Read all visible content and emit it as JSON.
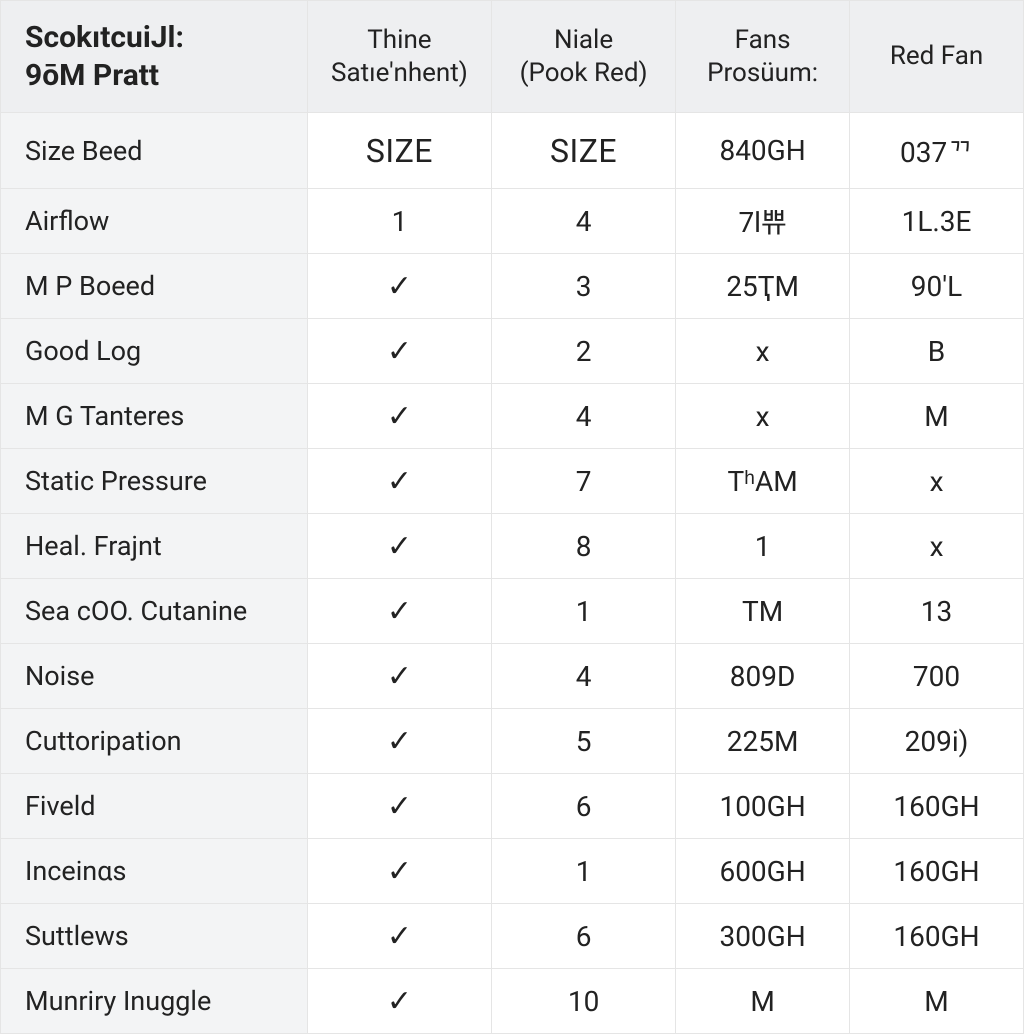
{
  "table": {
    "type": "table",
    "background_color": "#ffffff",
    "header_bg": "#eeeff1",
    "label_col_bg": "#f3f4f5",
    "border_color": "#e5e5e5",
    "text_color": "#222222",
    "header_fontsize": 26,
    "header_first_fontsize": 30,
    "body_fontsize": 28,
    "checkmark_glyph": "✓",
    "col_widths_pct": [
      30,
      18,
      18,
      17,
      17
    ],
    "columns": [
      "ScokıtcuiJl:\n9ōM Pratt",
      "Thine\nSatıe'nhent)",
      "Niale\n(Pook Red)",
      "Fans\nProsüum:",
      "Red Fan"
    ],
    "rows": [
      [
        "Size Beed",
        "SIZE",
        "SIZE",
        "840GH",
        "037ᄁ"
      ],
      [
        "Airflow",
        "1",
        "4",
        "7l쀼",
        "1L.3E"
      ],
      [
        "M P Boeed",
        "✓",
        "3",
        "25ҬM",
        "90'L"
      ],
      [
        "Good Log",
        "✓",
        "2",
        "x",
        "B"
      ],
      [
        "M G Tanteres",
        "✓",
        "4",
        "x",
        "M"
      ],
      [
        "Static Pressure",
        "✓",
        "7",
        "TʰAM",
        "x"
      ],
      [
        "Heal. Frajnt",
        "✓",
        "8",
        "1",
        "x"
      ],
      [
        "Sea cOO. Cutanine",
        "✓",
        "1",
        "TM",
        "13"
      ],
      [
        "Noise",
        "✓",
        "4",
        "809D",
        "700"
      ],
      [
        "Cuttoripation",
        "✓",
        "5",
        "225M",
        "209i)"
      ],
      [
        "Fiveld",
        "✓",
        "6",
        "100GH",
        "160GH"
      ],
      [
        "Inceinαs",
        "✓",
        "1",
        "600GH",
        "160GH"
      ],
      [
        "Suttlews",
        "✓",
        "6",
        "300GH",
        "160GH"
      ],
      [
        "Munriry Inuggle",
        "✓",
        "10",
        "M",
        "M"
      ]
    ]
  }
}
